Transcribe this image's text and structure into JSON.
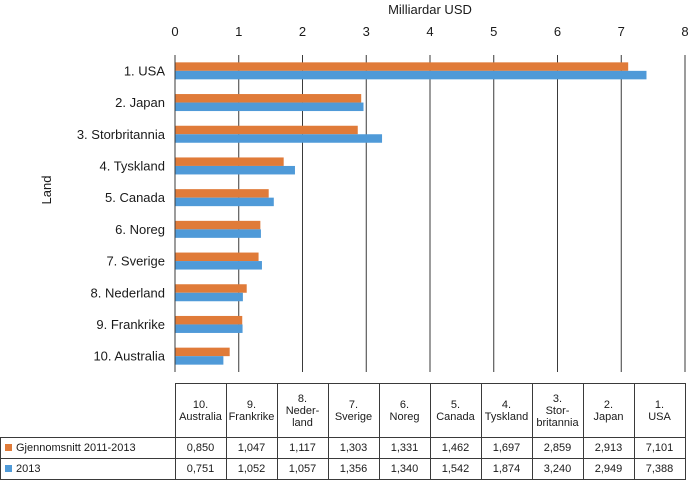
{
  "chart_data": {
    "type": "bar",
    "orientation": "horizontal",
    "xlabel": "Milliardar USD",
    "ylabel": "Land",
    "xlim": [
      0,
      8
    ],
    "xticks": [
      "0",
      "1",
      "2",
      "3",
      "4",
      "5",
      "6",
      "7",
      "8"
    ],
    "grid": true,
    "categories": [
      "1. USA",
      "2. Japan",
      "3. Storbritannia",
      "4. Tyskland",
      "5. Canada",
      "6. Noreg",
      "7. Sverige",
      "8. Nederland",
      "9. Frankrike",
      "10. Australia"
    ],
    "series": [
      {
        "name": "Gjennomsnitt 2011-2013",
        "color": "#e07b39",
        "values": [
          7.101,
          2.913,
          2.859,
          1.697,
          1.462,
          1.331,
          1.303,
          1.117,
          1.047,
          0.85
        ]
      },
      {
        "name": "2013",
        "color": "#4f9ad8",
        "values": [
          7.388,
          2.949,
          3.24,
          1.874,
          1.542,
          1.34,
          1.356,
          1.057,
          1.052,
          0.751
        ]
      }
    ]
  },
  "table": {
    "columns": [
      "10.\nAustralia",
      "9.\nFrankrike",
      "8.\nNeder-\nland",
      "7.\nSverige",
      "6.\nNoreg",
      "5.\nCanada",
      "4.\nTyskland",
      "3.\nStor-\nbritannia",
      "2.\nJapan",
      "1.\nUSA"
    ],
    "rows": [
      {
        "label": "Gjennomsnitt 2011-2013",
        "color": "#e07b39",
        "cells": [
          "0,850",
          "1,047",
          "1,117",
          "1,303",
          "1,331",
          "1,462",
          "1,697",
          "2,859",
          "2,913",
          "7,101"
        ]
      },
      {
        "label": "2013",
        "color": "#4f9ad8",
        "cells": [
          "0,751",
          "1,052",
          "1,057",
          "1,356",
          "1,340",
          "1,542",
          "1,874",
          "3,240",
          "2,949",
          "7,388"
        ]
      }
    ]
  }
}
